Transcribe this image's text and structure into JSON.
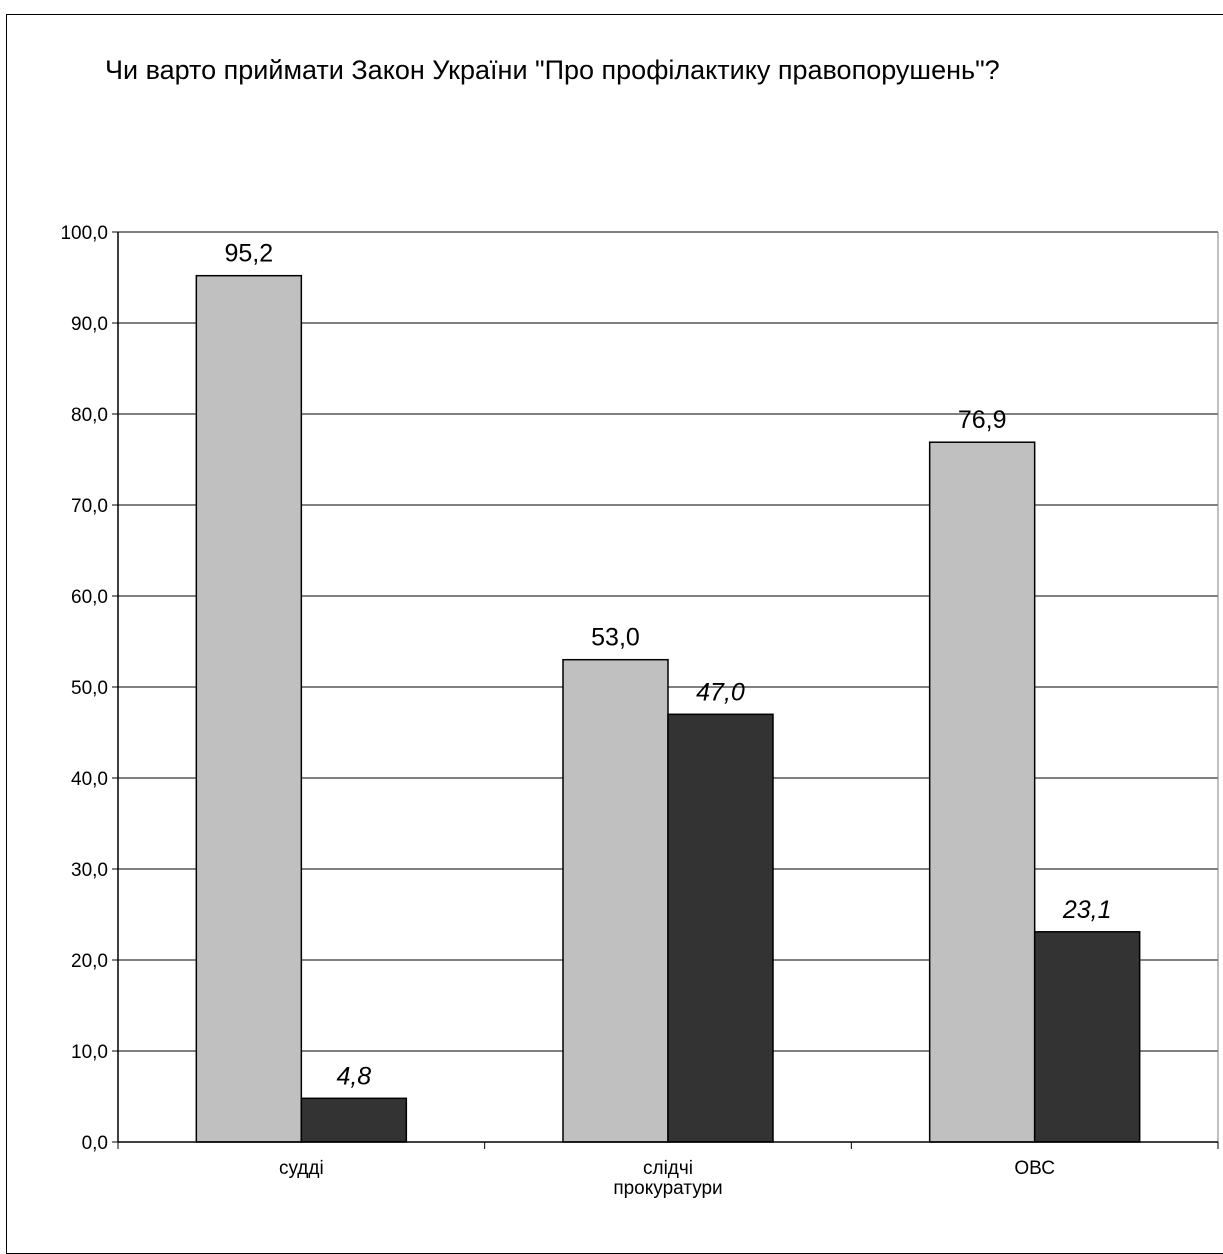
{
  "chart_data": {
    "type": "bar",
    "title": "Чи варто приймати Закон України \"Про профілактику правопорушень\"?",
    "xlabel": "",
    "ylabel": "",
    "categories": [
      "судді",
      "слідчі прокуратури",
      "ОВС"
    ],
    "series": [
      {
        "values": [
          95.2,
          53.0,
          76.9
        ],
        "color": "#c0c0c0",
        "labels": [
          "95,2",
          "53,0",
          "76,9"
        ],
        "label_style": "normal"
      },
      {
        "values": [
          4.8,
          47.0,
          23.1
        ],
        "color": "#333333",
        "labels": [
          "4,8",
          "47,0",
          "23,1"
        ],
        "label_style": "italic"
      }
    ],
    "ylim": [
      0,
      100
    ],
    "yticks": [
      "0,0",
      "10,0",
      "20,0",
      "30,0",
      "40,0",
      "50,0",
      "60,0",
      "70,0",
      "80,0",
      "90,0",
      "100,0"
    ],
    "grid": true,
    "legend": "none"
  }
}
